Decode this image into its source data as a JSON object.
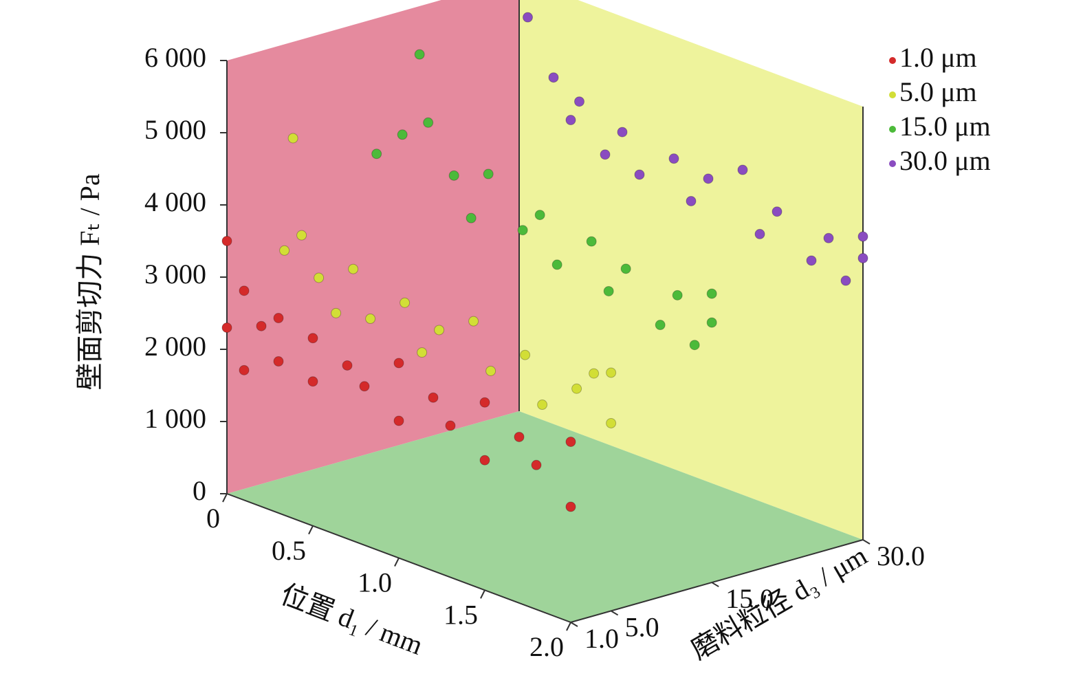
{
  "chart_data": {
    "type": "scatter3d",
    "xlabel": "位置 d₁ / mm",
    "ylabel": "磨料粒径 d₃ / μm",
    "zlabel": "壁面剪切力 Fₜ / Pa",
    "xlim": [
      0,
      2
    ],
    "xticks": [
      0,
      0.5,
      {
        "value": 1,
        "label": "1.0"
      },
      1.5,
      {
        "value": 2,
        "label": "2.0"
      }
    ],
    "ylim": [
      1,
      30
    ],
    "yticks": [
      {
        "value": 1,
        "label": "1.0"
      },
      {
        "value": 5,
        "label": "5.0"
      },
      {
        "value": 15,
        "label": "15.0"
      },
      {
        "value": 30,
        "label": "30.0"
      }
    ],
    "zlim": [
      0,
      6000
    ],
    "zticks": [
      0,
      {
        "value": 1000,
        "label": "1 000"
      },
      {
        "value": 2000,
        "label": "2 000"
      },
      {
        "value": 3000,
        "label": "3 000"
      },
      {
        "value": 4000,
        "label": "4 000"
      },
      {
        "value": 5000,
        "label": "5 000"
      },
      {
        "value": 6000,
        "label": "6 000"
      }
    ],
    "legend": "upper right",
    "series": [
      {
        "name": "1.0 μm",
        "color": "#d42a2a",
        "d3": 1,
        "x": [
          0,
          0,
          0.1,
          0.1,
          0.2,
          0.3,
          0.3,
          0.5,
          0.5,
          0.7,
          0.8,
          1.0,
          1.0,
          1.2,
          1.3,
          1.5,
          1.5,
          1.7,
          1.8,
          2.0,
          2.0
        ],
        "values": [
          3500,
          2300,
          2900,
          1800,
          2500,
          2700,
          2100,
          2600,
          2000,
          2400,
          2200,
          2700,
          1900,
          2400,
          2100,
          2600,
          1800,
          2300,
          2000,
          2500,
          1600
        ]
      },
      {
        "name": "5.0 μm",
        "color": "#d2de36",
        "d3": 5,
        "x": [
          0.1,
          0.15,
          0.2,
          0.3,
          0.4,
          0.5,
          0.6,
          0.8,
          0.9,
          1.0,
          1.2,
          1.3,
          1.5,
          1.6,
          1.8,
          1.9,
          2.0,
          2.0
        ],
        "values": [
          3300,
          4900,
          3600,
          3100,
          2700,
          3400,
          2800,
          3200,
          2600,
          3000,
          3300,
          2700,
          3100,
          2500,
          2900,
          3200,
          2600,
          3300
        ]
      },
      {
        "name": "15.0 μm",
        "color": "#4cba3a",
        "d3": 15,
        "x": [
          0.05,
          0.2,
          0.3,
          0.35,
          0.5,
          0.6,
          0.7,
          0.9,
          1.0,
          1.1,
          1.3,
          1.4,
          1.5,
          1.7,
          1.8,
          1.9,
          2.0,
          2.0
        ],
        "values": [
          4200,
          4600,
          5800,
          4900,
          4300,
          3800,
          4500,
          3900,
          4200,
          3600,
          4100,
          3500,
          3900,
          3300,
          3800,
          3200,
          3600,
          4000
        ]
      },
      {
        "name": "30.0 μm",
        "color": "#8a4cc0",
        "d3": 30,
        "x": [
          0.05,
          0.2,
          0.3,
          0.35,
          0.5,
          0.6,
          0.7,
          0.9,
          1.0,
          1.1,
          1.3,
          1.4,
          1.5,
          1.7,
          1.8,
          1.9,
          2.0,
          2.0
        ],
        "values": [
          5500,
          4800,
          4300,
          4600,
          4000,
          4400,
          3900,
          4300,
          3800,
          4200,
          4500,
          3700,
          4100,
          3600,
          4000,
          3500,
          3900,
          4200
        ]
      }
    ]
  }
}
